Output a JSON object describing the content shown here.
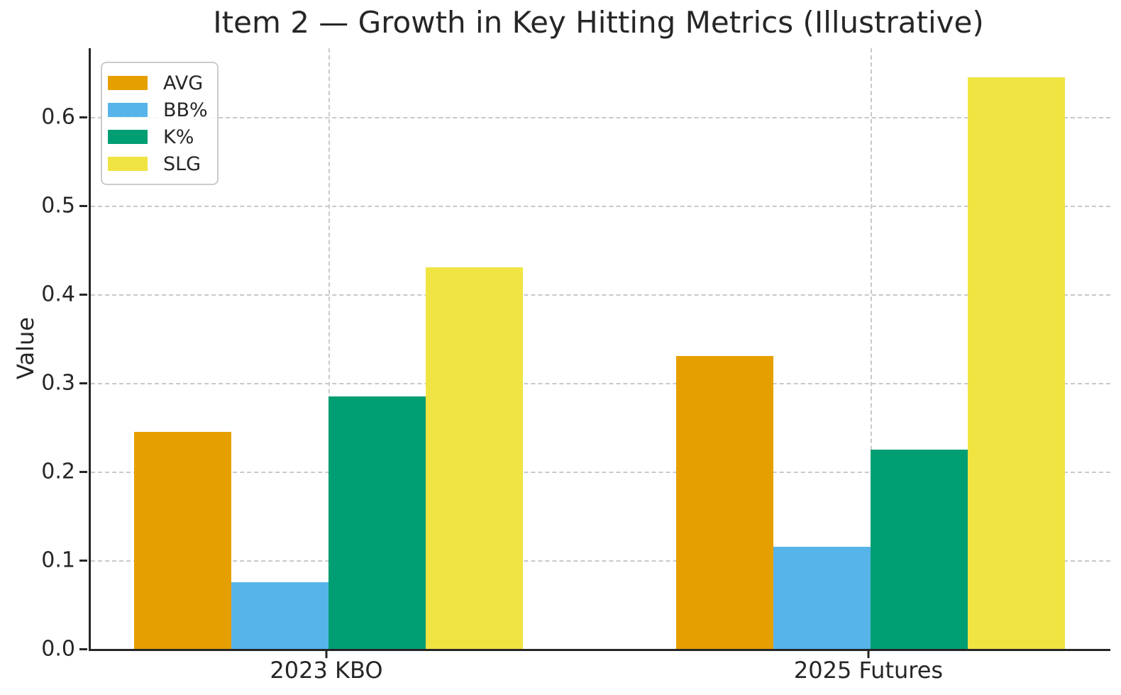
{
  "chart_data": {
    "type": "bar",
    "title": "Item 2 — Growth in Key Hitting Metrics (Illustrative)",
    "xlabel": "",
    "ylabel": "Value",
    "categories": [
      "2023 KBO",
      "2025 Futures"
    ],
    "series": [
      {
        "name": "AVG",
        "color": "#E69F00",
        "values": [
          0.245,
          0.33
        ]
      },
      {
        "name": "BB%",
        "color": "#56B4E9",
        "values": [
          0.075,
          0.115
        ]
      },
      {
        "name": "K%",
        "color": "#009E73",
        "values": [
          0.285,
          0.225
        ]
      },
      {
        "name": "SLG",
        "color": "#F0E442",
        "values": [
          0.43,
          0.645
        ]
      }
    ],
    "ylim": [
      0,
      0.678
    ],
    "yticks": [
      0.0,
      0.1,
      0.2,
      0.3,
      0.4,
      0.5,
      0.6
    ],
    "ytick_labels": [
      "0.0",
      "0.1",
      "0.2",
      "0.3",
      "0.4",
      "0.5",
      "0.6"
    ],
    "grid": true,
    "grid_style": "dashed",
    "legend_position": "upper left",
    "background": "#ffffff"
  }
}
